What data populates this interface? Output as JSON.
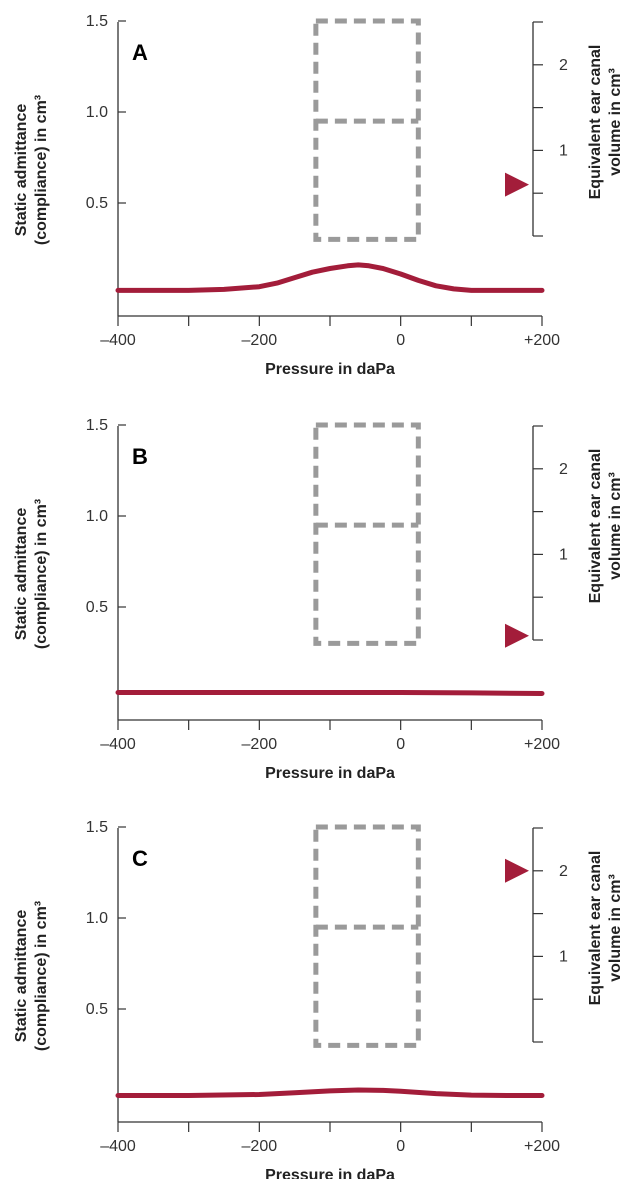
{
  "colors": {
    "curve": "#a31d3a",
    "marker": "#a31d3a",
    "reference_box": "#9a9a9a",
    "axis": "#333333"
  },
  "chart_data": [
    {
      "type": "line",
      "panel_label": "A",
      "xlabel": "Pressure in daPa",
      "ylabel_lines": [
        "Static admittance",
        "(compliance) in cm³"
      ],
      "y2label_lines": [
        "Equivalent ear canal",
        "volume in cm³"
      ],
      "xlim": [
        -400,
        200
      ],
      "ylim": [
        0,
        1.5
      ],
      "y2lim": [
        0,
        2.5
      ],
      "x_ticks": [
        -400,
        -300,
        -200,
        -100,
        0,
        100,
        200
      ],
      "x_tick_labels": [
        "–400",
        "–200",
        "0",
        "+200"
      ],
      "y_tick_labels": [
        "1.5",
        "1.0",
        "0.5"
      ],
      "y2_tick_labels": [
        "2",
        "1"
      ],
      "reference_box": {
        "x": [
          -120,
          25
        ],
        "y": [
          0.3,
          1.5
        ],
        "divider_y": 0.95
      },
      "series": [
        {
          "x": [
            -400,
            -350,
            -300,
            -250,
            -200,
            -175,
            -150,
            -125,
            -100,
            -75,
            -60,
            -45,
            -25,
            0,
            25,
            50,
            75,
            100,
            150,
            200
          ],
          "y": [
            0.02,
            0.02,
            0.02,
            0.025,
            0.04,
            0.06,
            0.09,
            0.12,
            0.14,
            0.155,
            0.16,
            0.155,
            0.14,
            0.11,
            0.075,
            0.045,
            0.028,
            0.02,
            0.02,
            0.02
          ]
        }
      ],
      "ear_canal_volume": 0.6
    },
    {
      "type": "line",
      "panel_label": "B",
      "xlabel": "Pressure in daPa",
      "ylabel_lines": [
        "Static admittance",
        "(compliance) in cm³"
      ],
      "y2label_lines": [
        "Equivalent ear canal",
        "volume in cm³"
      ],
      "xlim": [
        -400,
        200
      ],
      "ylim": [
        0,
        1.5
      ],
      "y2lim": [
        0,
        2.5
      ],
      "x_ticks": [
        -400,
        -300,
        -200,
        -100,
        0,
        100,
        200
      ],
      "x_tick_labels": [
        "–400",
        "–200",
        "0",
        "+200"
      ],
      "y_tick_labels": [
        "1.5",
        "1.0",
        "0.5"
      ],
      "y2_tick_labels": [
        "2",
        "1"
      ],
      "reference_box": {
        "x": [
          -120,
          25
        ],
        "y": [
          0.3,
          1.5
        ],
        "divider_y": 0.95
      },
      "series": [
        {
          "x": [
            -400,
            -300,
            -200,
            -100,
            0,
            100,
            200
          ],
          "y": [
            0.03,
            0.03,
            0.03,
            0.03,
            0.03,
            0.028,
            0.025
          ]
        }
      ],
      "ear_canal_volume": 0.05
    },
    {
      "type": "line",
      "panel_label": "C",
      "xlabel": "Pressure in daPa",
      "ylabel_lines": [
        "Static admittance",
        "(compliance) in cm³"
      ],
      "y2label_lines": [
        "Equivalent ear canal",
        "volume in cm³"
      ],
      "xlim": [
        -400,
        200
      ],
      "ylim": [
        0,
        1.5
      ],
      "y2lim": [
        0,
        2.5
      ],
      "x_ticks": [
        -400,
        -300,
        -200,
        -100,
        0,
        100,
        200
      ],
      "x_tick_labels": [
        "–400",
        "–200",
        "0",
        "+200"
      ],
      "y_tick_labels": [
        "1.5",
        "1.0",
        "0.5"
      ],
      "y2_tick_labels": [
        "2",
        "1"
      ],
      "reference_box": {
        "x": [
          -120,
          25
        ],
        "y": [
          0.3,
          1.5
        ],
        "divider_y": 0.95
      },
      "series": [
        {
          "x": [
            -400,
            -300,
            -200,
            -150,
            -100,
            -60,
            -25,
            0,
            50,
            100,
            150,
            200
          ],
          "y": [
            0.025,
            0.025,
            0.03,
            0.04,
            0.05,
            0.055,
            0.053,
            0.048,
            0.035,
            0.027,
            0.025,
            0.025
          ]
        }
      ],
      "ear_canal_volume": 2.0
    }
  ]
}
